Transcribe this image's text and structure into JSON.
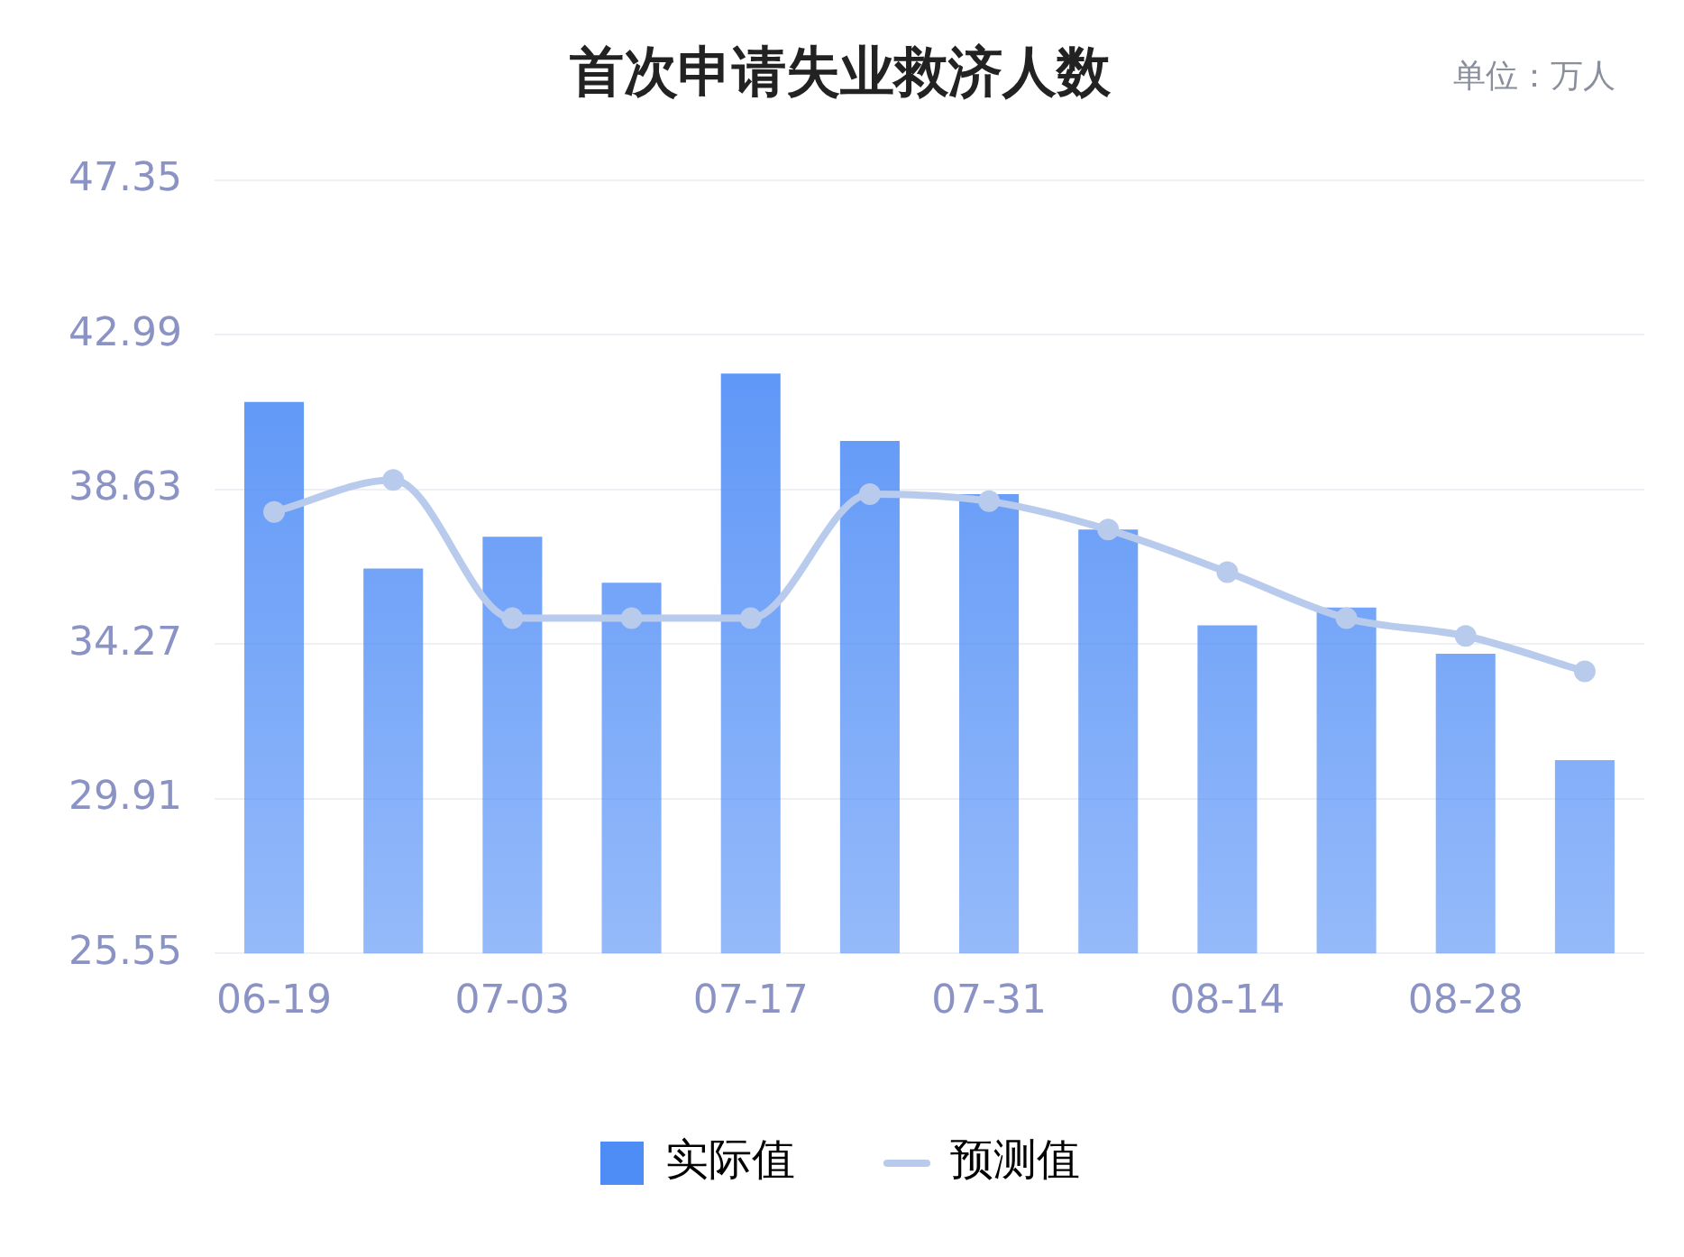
{
  "chart_data": {
    "type": "bar",
    "title": "首次申请失业救济人数",
    "annotations": [
      "单位：万人"
    ],
    "categories": [
      "06-19",
      null,
      "07-03",
      null,
      "07-17",
      null,
      "07-31",
      null,
      "08-14",
      null,
      "08-28",
      null
    ],
    "series": [
      {
        "name": "实际值",
        "color": "#4e8cf6",
        "values": [
          41.1,
          36.4,
          37.3,
          36.0,
          41.9,
          40.0,
          38.5,
          37.5,
          34.8,
          35.3,
          34.0,
          31.0
        ]
      },
      {
        "name": "预测值",
        "type": "line",
        "color": "#b9cbec",
        "marker": "circle",
        "values": [
          38.0,
          38.9,
          35.0,
          35.0,
          35.0,
          38.5,
          38.3,
          37.5,
          36.3,
          35.0,
          34.5,
          33.5
        ]
      }
    ],
    "ylim": [
      25.55,
      47.35
    ],
    "yticks": [
      25.55,
      29.91,
      34.27,
      38.63,
      42.99,
      47.35
    ],
    "grid": "y",
    "legend": "bottom"
  }
}
